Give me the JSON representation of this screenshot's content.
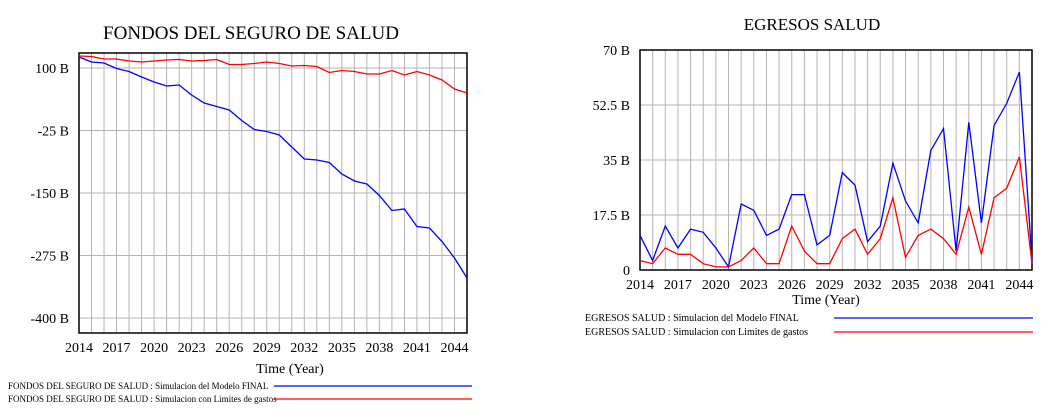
{
  "chart_data": [
    {
      "type": "line",
      "title": "FONDOS DEL SEGURO DE SALUD",
      "xlabel": "Time (Year)",
      "ylabel": "",
      "x": [
        2014,
        2015,
        2016,
        2017,
        2018,
        2019,
        2020,
        2021,
        2022,
        2023,
        2024,
        2025,
        2026,
        2027,
        2028,
        2029,
        2030,
        2031,
        2032,
        2033,
        2034,
        2035,
        2036,
        2037,
        2038,
        2039,
        2040,
        2041,
        2042,
        2043,
        2044,
        2045
      ],
      "xlim": [
        2014,
        2045
      ],
      "xticks": [
        2014,
        2017,
        2020,
        2023,
        2026,
        2029,
        2032,
        2035,
        2038,
        2041,
        2044
      ],
      "xtick_labels": [
        "2014",
        "2017",
        "2020",
        "2023",
        "2026",
        "2029",
        "2032",
        "2035",
        "2038",
        "2041",
        "2044"
      ],
      "ylim": [
        -430,
        130
      ],
      "yticks": [
        100,
        -25,
        -150,
        -275,
        -400
      ],
      "ytick_labels": [
        "100 B",
        "-25 B",
        "-150 B",
        "-275 B",
        "-400 B"
      ],
      "grid": true,
      "series": [
        {
          "name": "FONDOS DEL SEGURO DE SALUD : Simulacion del Modelo FINAL",
          "color": "#0000ff",
          "values": [
            122,
            112,
            110,
            99,
            93,
            82,
            72,
            64,
            66,
            46,
            30,
            23,
            16,
            -5,
            -23,
            -27,
            -34,
            -58,
            -82,
            -84,
            -89,
            -112,
            -126,
            -132,
            -155,
            -185,
            -182,
            -217,
            -220,
            -247,
            -280,
            -320
          ]
        },
        {
          "name": "FONDOS DEL SEGURO DE SALUD : Simulacion con Limites de gastos",
          "color": "#ff0000",
          "values": [
            124,
            123,
            118,
            118,
            114,
            112,
            114,
            116,
            117,
            114,
            115,
            117,
            107,
            107,
            109,
            112,
            109,
            104,
            105,
            103,
            91,
            95,
            93,
            88,
            88,
            95,
            86,
            93,
            86,
            76,
            58,
            50
          ]
        }
      ]
    },
    {
      "type": "line",
      "title": "EGRESOS SALUD",
      "xlabel": "Time (Year)",
      "ylabel": "",
      "x": [
        2014,
        2015,
        2016,
        2017,
        2018,
        2019,
        2020,
        2021,
        2022,
        2023,
        2024,
        2025,
        2026,
        2027,
        2028,
        2029,
        2030,
        2031,
        2032,
        2033,
        2034,
        2035,
        2036,
        2037,
        2038,
        2039,
        2040,
        2041,
        2042,
        2043,
        2044,
        2045
      ],
      "xlim": [
        2014,
        2045
      ],
      "xticks": [
        2014,
        2017,
        2020,
        2023,
        2026,
        2029,
        2032,
        2035,
        2038,
        2041,
        2044
      ],
      "xtick_labels": [
        "2014",
        "2017",
        "2020",
        "2023",
        "2026",
        "2029",
        "2032",
        "2035",
        "2038",
        "2041",
        "2044"
      ],
      "ylim": [
        0,
        70
      ],
      "yticks": [
        70,
        52.5,
        35,
        17.5,
        0
      ],
      "ytick_labels": [
        "70 B",
        "52.5 B",
        "35 B",
        "17.5 B",
        "0"
      ],
      "grid": true,
      "series": [
        {
          "name": "EGRESOS SALUD : Simulacion del Modelo FINAL",
          "color": "#0000ff",
          "values": [
            11,
            3,
            14,
            7,
            13,
            12,
            7,
            1,
            21,
            19,
            11,
            13,
            24,
            24,
            8,
            11,
            31,
            27,
            9,
            14,
            34,
            22,
            15,
            38,
            45,
            6,
            47,
            15,
            46,
            53,
            63,
            3
          ]
        },
        {
          "name": "EGRESOS SALUD : Simulacion con Limites de gastos",
          "color": "#ff0000",
          "values": [
            3,
            2,
            7,
            5,
            5,
            2,
            1,
            1,
            3,
            7,
            2,
            2,
            14,
            6,
            2,
            2,
            10,
            13,
            5,
            10,
            23,
            4,
            11,
            13,
            10,
            5,
            20,
            5,
            23,
            26,
            36,
            2
          ]
        }
      ]
    }
  ]
}
